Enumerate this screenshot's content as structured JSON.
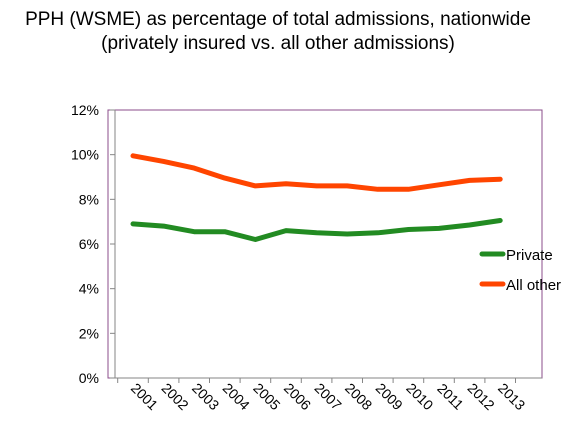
{
  "chart_data": {
    "type": "line",
    "title_lines": [
      "PPH (WSME) as percentage of total admissions, nationwide",
      "(privately insured vs. all other admissions)"
    ],
    "categories": [
      "2001",
      "2002",
      "2003",
      "2004",
      "2005",
      "2006",
      "2007",
      "2008",
      "2009",
      "2010",
      "2011",
      "2012",
      "2013"
    ],
    "y_tick_labels": [
      "0%",
      "2%",
      "4%",
      "6%",
      "8%",
      "10%",
      "12%"
    ],
    "ylim": [
      0,
      12
    ],
    "y_ticks": [
      0,
      2,
      4,
      6,
      8,
      10,
      12
    ],
    "grid": false,
    "legend_position": "right",
    "series": [
      {
        "name": "Private",
        "color": "#228B22",
        "values": [
          6.9,
          6.8,
          6.55,
          6.55,
          6.2,
          6.6,
          6.5,
          6.45,
          6.5,
          6.65,
          6.7,
          6.85,
          7.05
        ]
      },
      {
        "name": "All other",
        "color": "#FF4500",
        "values": [
          9.95,
          9.7,
          9.4,
          8.95,
          8.6,
          8.7,
          8.6,
          8.6,
          8.45,
          8.45,
          8.65,
          8.85,
          8.9
        ]
      }
    ],
    "colors": {
      "plot_border": "#8B4C8B",
      "axis": "#868686"
    }
  }
}
